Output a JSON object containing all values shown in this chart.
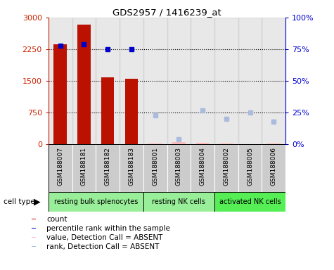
{
  "title": "GDS2957 / 1416239_at",
  "samples": [
    "GSM188007",
    "GSM188181",
    "GSM188182",
    "GSM188183",
    "GSM188001",
    "GSM188003",
    "GSM188004",
    "GSM188002",
    "GSM188005",
    "GSM188006"
  ],
  "count_values": [
    2370,
    2830,
    1580,
    1560,
    null,
    null,
    null,
    null,
    null,
    null
  ],
  "count_absent": [
    null,
    null,
    null,
    null,
    30,
    50,
    40,
    30,
    15,
    30
  ],
  "percentile_values": [
    78,
    79,
    75,
    75,
    null,
    null,
    null,
    null,
    null,
    null
  ],
  "rank_absent": [
    null,
    null,
    null,
    null,
    23,
    4,
    27,
    20,
    25,
    18
  ],
  "cell_groups": [
    {
      "label": "resting bulk splenocytes",
      "start": 0,
      "end": 4,
      "color": "#99ee99"
    },
    {
      "label": "resting NK cells",
      "start": 4,
      "end": 7,
      "color": "#99ee99"
    },
    {
      "label": "activated NK cells",
      "start": 7,
      "end": 10,
      "color": "#55ee55"
    }
  ],
  "ylim_left": [
    0,
    3000
  ],
  "ylim_right": [
    0,
    100
  ],
  "yticks_left": [
    0,
    750,
    1500,
    2250,
    3000
  ],
  "yticks_right": [
    0,
    25,
    50,
    75,
    100
  ],
  "ytick_labels_left": [
    "0",
    "750",
    "1500",
    "2250",
    "3000"
  ],
  "ytick_labels_right": [
    "0%",
    "25%",
    "50%",
    "75%",
    "100%"
  ],
  "bar_color": "#bb1100",
  "bar_absent_color": "#ffbbbb",
  "dot_color": "#0000cc",
  "dot_absent_color": "#aabbdd",
  "col_bg_color": "#cccccc",
  "legend_items": [
    {
      "label": "count",
      "color": "#cc1100"
    },
    {
      "label": "percentile rank within the sample",
      "color": "#0000cc"
    },
    {
      "label": "value, Detection Call = ABSENT",
      "color": "#ffbbbb"
    },
    {
      "label": "rank, Detection Call = ABSENT",
      "color": "#aabbdd"
    }
  ]
}
